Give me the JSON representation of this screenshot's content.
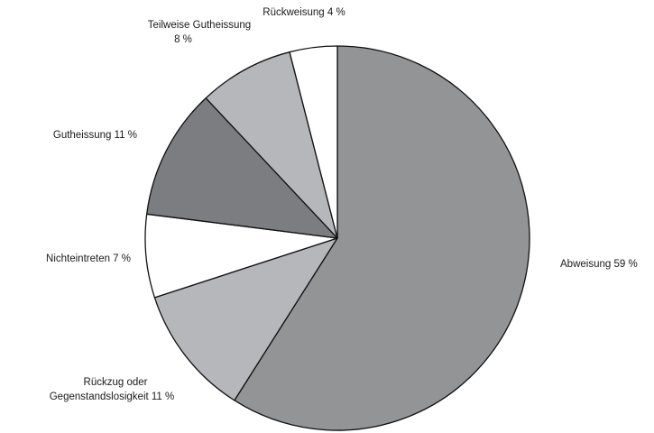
{
  "chart_data": {
    "type": "pie",
    "title": "",
    "direction": "clockwise",
    "start": "top",
    "slices": [
      {
        "label": "Abweisung 59 %",
        "value": 59,
        "color": "#939496"
      },
      {
        "label": "Rückzug oder",
        "label2": "Gegenstandslosigkeit 11 %",
        "value": 11,
        "color": "#b6b7ba"
      },
      {
        "label": "Nichteintreten 7 %",
        "value": 7,
        "color": "#ffffff"
      },
      {
        "label": "Gutheissung 11 %",
        "value": 11,
        "color": "#7c7d80"
      },
      {
        "label": "Teilweise Gutheissung",
        "label2": "8 %",
        "value": 8,
        "color": "#b6b7ba"
      },
      {
        "label": "Rückweisung 4 %",
        "value": 4,
        "color": "#ffffff"
      }
    ]
  }
}
